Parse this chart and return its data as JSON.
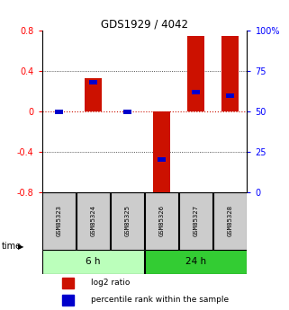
{
  "title": "GDS1929 / 4042",
  "samples": [
    "GSM85323",
    "GSM85324",
    "GSM85325",
    "GSM85326",
    "GSM85327",
    "GSM85328"
  ],
  "log2_ratio": [
    0.0,
    0.33,
    0.0,
    -0.83,
    0.75,
    0.75
  ],
  "percentile_rank": [
    50,
    68,
    50,
    20,
    62,
    60
  ],
  "groups": [
    {
      "label": "6 h",
      "indices": [
        0,
        1,
        2
      ],
      "color": "#bbffbb"
    },
    {
      "label": "24 h",
      "indices": [
        3,
        4,
        5
      ],
      "color": "#33cc33"
    }
  ],
  "ylim": [
    -0.8,
    0.8
  ],
  "yticks_left": [
    -0.8,
    -0.4,
    0.0,
    0.4,
    0.8
  ],
  "yticks_right": [
    0,
    25,
    50,
    75,
    100
  ],
  "bar_color": "#cc1100",
  "percentile_color": "#0000cc",
  "grid_color": "#222222",
  "zero_line_color": "#cc1100",
  "background_color": "#ffffff",
  "sample_box_color": "#cccccc",
  "legend_items": [
    "log2 ratio",
    "percentile rank within the sample"
  ]
}
